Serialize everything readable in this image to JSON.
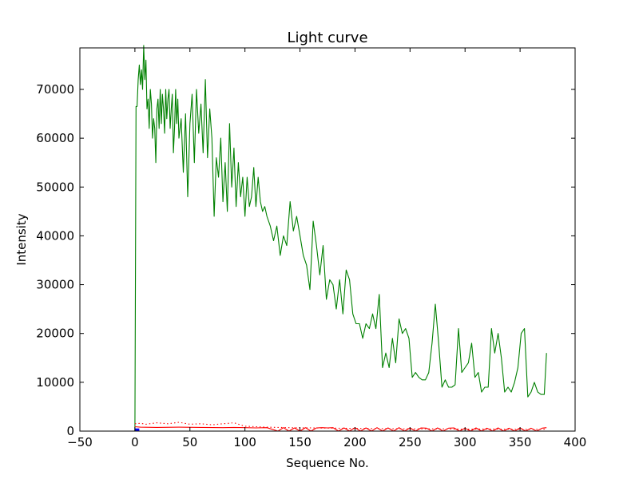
{
  "chart_data": {
    "type": "line",
    "title": "Light curve",
    "xlabel": "Sequence No.",
    "ylabel": "Intensity",
    "xlim": [
      -50,
      400
    ],
    "ylim": [
      0,
      78500
    ],
    "xticks": [
      -50,
      0,
      50,
      100,
      150,
      200,
      250,
      300,
      350,
      400
    ],
    "yticks": [
      0,
      10000,
      20000,
      30000,
      40000,
      50000,
      60000,
      70000
    ],
    "grid": false,
    "legend": "none",
    "series": [
      {
        "color": "#008000",
        "style": "solid",
        "x": [
          0,
          1,
          2,
          3,
          4,
          5,
          6,
          7,
          8,
          9,
          10,
          11,
          12,
          13,
          14,
          15,
          16,
          17,
          18,
          19,
          20,
          21,
          22,
          23,
          24,
          25,
          26,
          27,
          28,
          29,
          30,
          31,
          32,
          33,
          34,
          35,
          36,
          37,
          38,
          39,
          40,
          42,
          44,
          46,
          48,
          50,
          52,
          54,
          56,
          58,
          60,
          62,
          64,
          66,
          68,
          70,
          72,
          74,
          76,
          78,
          80,
          82,
          84,
          86,
          88,
          90,
          92,
          94,
          96,
          98,
          100,
          102,
          104,
          106,
          108,
          110,
          112,
          114,
          116,
          118,
          120,
          123,
          126,
          129,
          132,
          135,
          138,
          141,
          144,
          147,
          150,
          153,
          156,
          159,
          162,
          165,
          168,
          171,
          174,
          177,
          180,
          183,
          186,
          189,
          192,
          195,
          198,
          201,
          204,
          207,
          210,
          213,
          216,
          219,
          222,
          225,
          228,
          231,
          234,
          237,
          240,
          243,
          246,
          249,
          252,
          255,
          258,
          261,
          264,
          267,
          270,
          273,
          276,
          279,
          282,
          285,
          288,
          291,
          294,
          297,
          300,
          303,
          306,
          309,
          312,
          315,
          318,
          321,
          324,
          327,
          330,
          333,
          336,
          339,
          342,
          345,
          348,
          351,
          354,
          357,
          360,
          363,
          366,
          369,
          372,
          374
        ],
        "y": [
          0,
          66500,
          66500,
          72000,
          75000,
          71000,
          74000,
          70000,
          79000,
          72000,
          76000,
          66000,
          68000,
          62000,
          70000,
          67000,
          60000,
          64000,
          62000,
          55000,
          66000,
          68000,
          62000,
          70000,
          63000,
          69000,
          66000,
          61000,
          70000,
          64000,
          68000,
          70000,
          62000,
          66000,
          69000,
          57000,
          62000,
          70000,
          63000,
          68000,
          60000,
          64000,
          53000,
          65000,
          48000,
          63000,
          69000,
          55000,
          70000,
          61000,
          67000,
          57000,
          72000,
          56000,
          66000,
          60000,
          44000,
          56000,
          52000,
          60000,
          47000,
          55000,
          45000,
          63000,
          50000,
          58000,
          46000,
          55000,
          48000,
          52000,
          44000,
          52000,
          46000,
          48000,
          54000,
          46000,
          52000,
          47000,
          45000,
          46000,
          44000,
          42000,
          39000,
          42000,
          36000,
          40000,
          38000,
          47000,
          41000,
          44000,
          40000,
          36000,
          34000,
          29000,
          43000,
          38000,
          32000,
          38000,
          27000,
          31000,
          30000,
          25000,
          31000,
          24000,
          33000,
          31000,
          24000,
          22000,
          22000,
          19000,
          22000,
          21000,
          24000,
          21000,
          28000,
          13000,
          16000,
          13000,
          19000,
          14000,
          23000,
          20000,
          21000,
          19000,
          11000,
          12000,
          11000,
          10500,
          10500,
          12000,
          18000,
          26000,
          18000,
          9000,
          10500,
          9000,
          9000,
          9500,
          21000,
          12000,
          13000,
          14000,
          18000,
          11000,
          12000,
          8000,
          9000,
          9000,
          21000,
          16000,
          20000,
          15000,
          8000,
          9000,
          8000,
          10000,
          13000,
          20000,
          21000,
          7000,
          8000,
          10000,
          8000,
          7500,
          7500,
          16000
        ]
      },
      {
        "color": "#ff0000",
        "style": "solid",
        "x": [
          0,
          5,
          20,
          40,
          60,
          80,
          90,
          100,
          110,
          120,
          130,
          135,
          140,
          145,
          150,
          155,
          160,
          165,
          170,
          175,
          180,
          185,
          190,
          195,
          200,
          205,
          210,
          215,
          220,
          225,
          230,
          235,
          240,
          245,
          250,
          255,
          260,
          265,
          270,
          275,
          280,
          285,
          290,
          295,
          300,
          305,
          310,
          315,
          320,
          325,
          330,
          335,
          340,
          345,
          350,
          355,
          360,
          365,
          370,
          374
        ],
        "y": [
          900,
          800,
          750,
          800,
          750,
          700,
          750,
          700,
          650,
          700,
          0,
          700,
          0,
          650,
          0,
          700,
          0,
          650,
          700,
          650,
          700,
          0,
          650,
          0,
          700,
          0,
          650,
          0,
          700,
          0,
          650,
          0,
          700,
          0,
          650,
          0,
          650,
          600,
          0,
          650,
          0,
          600,
          650,
          0,
          600,
          0,
          650,
          0,
          600,
          0,
          650,
          0,
          600,
          0,
          650,
          0,
          600,
          0,
          600,
          700
        ]
      },
      {
        "color": "#ff0000",
        "style": "dotted",
        "x": [
          0,
          5,
          10,
          20,
          30,
          40,
          50,
          60,
          70,
          80,
          90,
          100,
          110,
          120,
          140,
          160,
          180,
          200,
          220,
          240,
          260,
          280,
          300,
          320,
          340,
          360,
          374
        ],
        "y": [
          1500,
          1600,
          1400,
          1700,
          1500,
          1800,
          1400,
          1500,
          1300,
          1500,
          1700,
          1000,
          900,
          800,
          700,
          650,
          600,
          550,
          500,
          480,
          450,
          450,
          400,
          420,
          400,
          380,
          400
        ]
      },
      {
        "color": "#0000ff",
        "style": "solid",
        "x": [
          0,
          1,
          2,
          3,
          4
        ],
        "y": [
          300,
          300,
          300,
          300,
          300
        ]
      }
    ]
  }
}
